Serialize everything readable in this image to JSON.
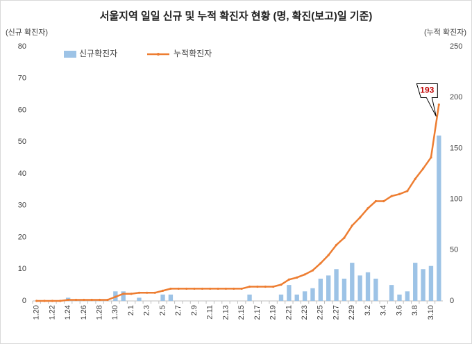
{
  "chart_data": {
    "type": "bar-line",
    "title": "서울지역 일일 신규 및 누적 확진자 현황 (명, 확진(보고)일 기준)",
    "y_label": "(신규 확진자)",
    "y2_label": "(누적 확진자)",
    "categories": [
      "1.20",
      null,
      "1.22",
      null,
      "1.24",
      null,
      "1.26",
      null,
      "1.28",
      null,
      "1.30",
      null,
      "2.1",
      null,
      "2.3",
      null,
      "2.5",
      null,
      "2.7",
      null,
      "2.9",
      null,
      "2.11",
      null,
      "2.13",
      null,
      "2.15",
      null,
      "2.17",
      null,
      "2.19",
      null,
      "2.21",
      null,
      "2.23",
      null,
      "2.25",
      null,
      "2.27",
      null,
      "2.29",
      null,
      "3.2",
      null,
      "3.4",
      null,
      "3.6",
      null,
      "3.8",
      null,
      "3.10",
      null
    ],
    "series": [
      {
        "name": "신규확진자",
        "type": "bar",
        "color": "#9dc3e6",
        "values": [
          0,
          0,
          0,
          0,
          1,
          0,
          0,
          0,
          0,
          0,
          3,
          3,
          0,
          1,
          0,
          0,
          2,
          2,
          0,
          0,
          0,
          0,
          0,
          0,
          0,
          0,
          0,
          2,
          0,
          0,
          0,
          2,
          5,
          2,
          3,
          4,
          7,
          8,
          10,
          7,
          12,
          8,
          9,
          7,
          0,
          5,
          2,
          3,
          12,
          10,
          11,
          52
        ]
      },
      {
        "name": "누적확진자",
        "type": "line",
        "axis": "y2",
        "color": "#ed7d31",
        "values": [
          0,
          0,
          0,
          0,
          1,
          1,
          1,
          1,
          1,
          1,
          4,
          7,
          7,
          8,
          8,
          8,
          10,
          12,
          12,
          12,
          12,
          12,
          12,
          12,
          12,
          12,
          12,
          14,
          14,
          14,
          14,
          16,
          21,
          23,
          26,
          30,
          37,
          45,
          55,
          62,
          74,
          82,
          91,
          98,
          98,
          103,
          105,
          108,
          120,
          130,
          141,
          193
        ]
      }
    ],
    "ylim": [
      0,
      80
    ],
    "yticks": [
      0,
      10,
      20,
      30,
      40,
      50,
      60,
      70,
      80
    ],
    "y2lim": [
      0,
      250
    ],
    "y2ticks": [
      0,
      50,
      100,
      150,
      200,
      250
    ],
    "grid": false,
    "legend": "top-left"
  }
}
